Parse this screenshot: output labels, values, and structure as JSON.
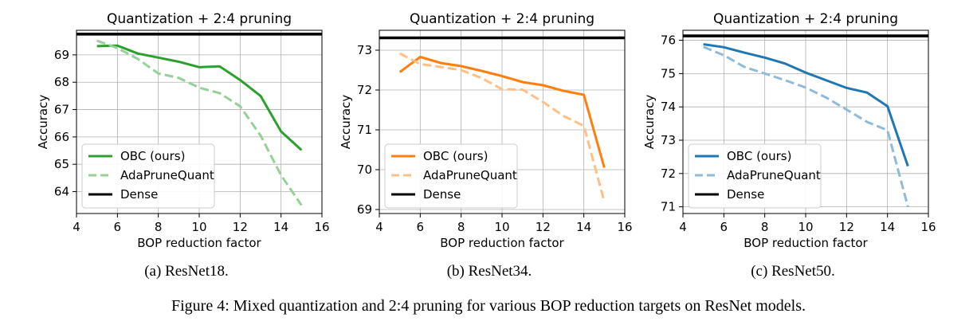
{
  "figure": {
    "caption": "Figure 4: Mixed quantization and 2:4 pruning for various BOP reduction targets on ResNet models.",
    "subcaptions": [
      "(a) ResNet18.",
      "(b) ResNet34.",
      "(c) ResNet50."
    ]
  },
  "chart_data": [
    {
      "type": "line",
      "title": "Quantization + 2:4 pruning",
      "xlabel": "BOP reduction factor",
      "ylabel": "Accuracy",
      "xlim": [
        4,
        16
      ],
      "ylim": [
        63.2,
        69.9
      ],
      "xticks": [
        4,
        6,
        8,
        10,
        12,
        14,
        16
      ],
      "yticks": [
        64,
        65,
        66,
        67,
        68,
        69
      ],
      "grid": true,
      "legend_position": "lower-left",
      "dense": 69.76,
      "series": [
        {
          "name": "OBC (ours)",
          "style": "solid",
          "color": "#2ca02c",
          "x": [
            5,
            6,
            7,
            8,
            9,
            10,
            11,
            12,
            13,
            14,
            15
          ],
          "y": [
            69.32,
            69.34,
            69.05,
            68.9,
            68.75,
            68.55,
            68.58,
            68.08,
            67.5,
            66.2,
            65.52
          ]
        },
        {
          "name": "AdaPruneQuant",
          "style": "dashed",
          "color": "#2ca02c",
          "x": [
            5,
            6,
            7,
            8,
            9,
            10,
            11,
            12,
            13,
            14,
            15
          ],
          "y": [
            69.52,
            69.25,
            68.85,
            68.32,
            68.16,
            67.8,
            67.6,
            67.12,
            66.05,
            64.6,
            63.5
          ]
        },
        {
          "name": "Dense",
          "style": "solid",
          "color": "#000000",
          "x": [
            4,
            16
          ],
          "y": [
            69.76,
            69.76
          ]
        }
      ]
    },
    {
      "type": "line",
      "title": "Quantization + 2:4 pruning",
      "xlabel": "BOP reduction factor",
      "ylabel": "Accuracy",
      "xlim": [
        4,
        16
      ],
      "ylim": [
        68.9,
        73.5
      ],
      "xticks": [
        4,
        6,
        8,
        10,
        12,
        14,
        16
      ],
      "yticks": [
        69,
        70,
        71,
        72,
        73
      ],
      "grid": true,
      "legend_position": "lower-left",
      "dense": 73.31,
      "series": [
        {
          "name": "OBC (ours)",
          "style": "solid",
          "color": "#ff7f0e",
          "x": [
            5,
            6,
            7,
            8,
            9,
            10,
            11,
            12,
            13,
            14,
            15
          ],
          "y": [
            72.45,
            72.83,
            72.68,
            72.6,
            72.48,
            72.35,
            72.2,
            72.12,
            71.98,
            71.88,
            70.05
          ]
        },
        {
          "name": "AdaPruneQuant",
          "style": "dashed",
          "color": "#ff7f0e",
          "x": [
            5,
            6,
            7,
            8,
            9,
            10,
            11,
            12,
            13,
            14,
            15
          ],
          "y": [
            72.92,
            72.65,
            72.58,
            72.5,
            72.3,
            72.02,
            72.01,
            71.7,
            71.35,
            71.1,
            69.2
          ]
        },
        {
          "name": "Dense",
          "style": "solid",
          "color": "#000000",
          "x": [
            4,
            16
          ],
          "y": [
            73.31,
            73.31
          ]
        }
      ]
    },
    {
      "type": "line",
      "title": "Quantization + 2:4 pruning",
      "xlabel": "BOP reduction factor",
      "ylabel": "Accuracy",
      "xlim": [
        4,
        16
      ],
      "ylim": [
        70.8,
        76.3
      ],
      "xticks": [
        4,
        6,
        8,
        10,
        12,
        14,
        16
      ],
      "yticks": [
        71,
        72,
        73,
        74,
        75,
        76
      ],
      "grid": true,
      "legend_position": "lower-left",
      "dense": 76.13,
      "series": [
        {
          "name": "OBC (ours)",
          "style": "solid",
          "color": "#1f77b4",
          "x": [
            5,
            6,
            7,
            8,
            9,
            10,
            11,
            12,
            13,
            14,
            15
          ],
          "y": [
            75.88,
            75.79,
            75.63,
            75.48,
            75.3,
            75.03,
            74.8,
            74.57,
            74.43,
            74.02,
            72.22
          ]
        },
        {
          "name": "AdaPruneQuant",
          "style": "dashed",
          "color": "#1f77b4",
          "x": [
            5,
            6,
            7,
            8,
            9,
            10,
            11,
            12,
            13,
            14,
            15
          ],
          "y": [
            75.8,
            75.55,
            75.2,
            75.0,
            74.8,
            74.58,
            74.28,
            73.92,
            73.55,
            73.3,
            71.0
          ]
        },
        {
          "name": "Dense",
          "style": "solid",
          "color": "#000000",
          "x": [
            4,
            16
          ],
          "y": [
            76.13,
            76.13
          ]
        }
      ]
    }
  ]
}
